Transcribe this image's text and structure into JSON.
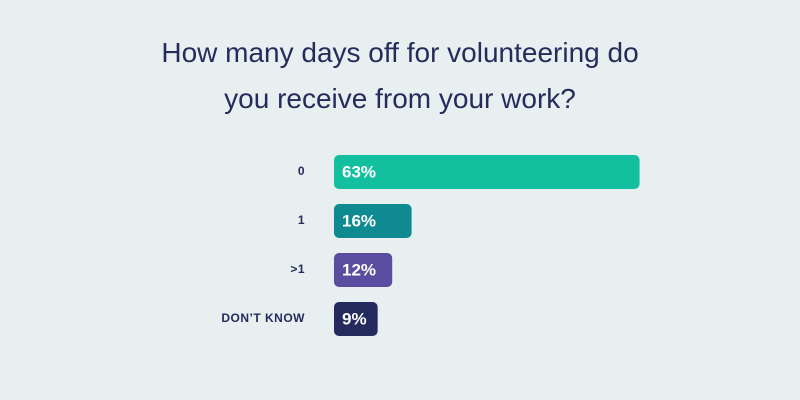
{
  "chart_data": {
    "type": "bar",
    "orientation": "horizontal",
    "title": "How many days off for volunteering do you receive from your work?",
    "categories": [
      "0",
      "1",
      ">1",
      "DON’T KNOW"
    ],
    "values": [
      63,
      16,
      12,
      9
    ],
    "value_labels": [
      "63%",
      "16%",
      "12%",
      "9%"
    ],
    "colors": [
      "#12c0a0",
      "#0f8a91",
      "#5a4c9f",
      "#242a5e"
    ]
  }
}
